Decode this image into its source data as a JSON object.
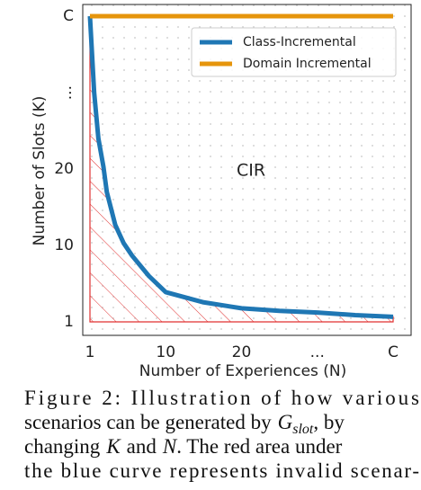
{
  "chart_data": {
    "type": "line",
    "xlabel": "Number of Experiences (N)",
    "ylabel": "Number of Slots (K)",
    "annotation": "CIR",
    "xlim": [
      1,
      40
    ],
    "ylim": [
      1,
      40
    ],
    "xticks": [
      1,
      10,
      20,
      {
        "value": 30,
        "label": "..."
      },
      {
        "value": 40,
        "label": "C"
      }
    ],
    "yticks": [
      1,
      10,
      20,
      {
        "value": 30,
        "label": "..."
      },
      {
        "value": 40,
        "label": "C"
      }
    ],
    "legend": "upper right",
    "series": [
      {
        "name": "Class-Incremental",
        "color": "#1f77b4",
        "x": [
          1,
          1.5,
          2,
          2.6,
          3,
          4,
          5,
          6,
          8,
          10,
          15,
          20,
          25,
          30,
          35,
          40
        ],
        "values": [
          40,
          30,
          24,
          20.3,
          17,
          12.7,
          10.3,
          8.8,
          6.4,
          4.5,
          3.3,
          2.6,
          2.3,
          2.1,
          1.8,
          1.6
        ]
      },
      {
        "name": "Domain Incremental",
        "color": "#e6950c",
        "x": [
          1,
          40
        ],
        "values": [
          40,
          40
        ]
      }
    ]
  },
  "caption": [
    "Figure 2:  Illustration of how various",
    "scenarios can be generated by",
    "G",
    "slot",
    ", by",
    "changing",
    "K",
    "and",
    "N",
    ". The red area under",
    "the blue curve represents invalid scenar-"
  ]
}
